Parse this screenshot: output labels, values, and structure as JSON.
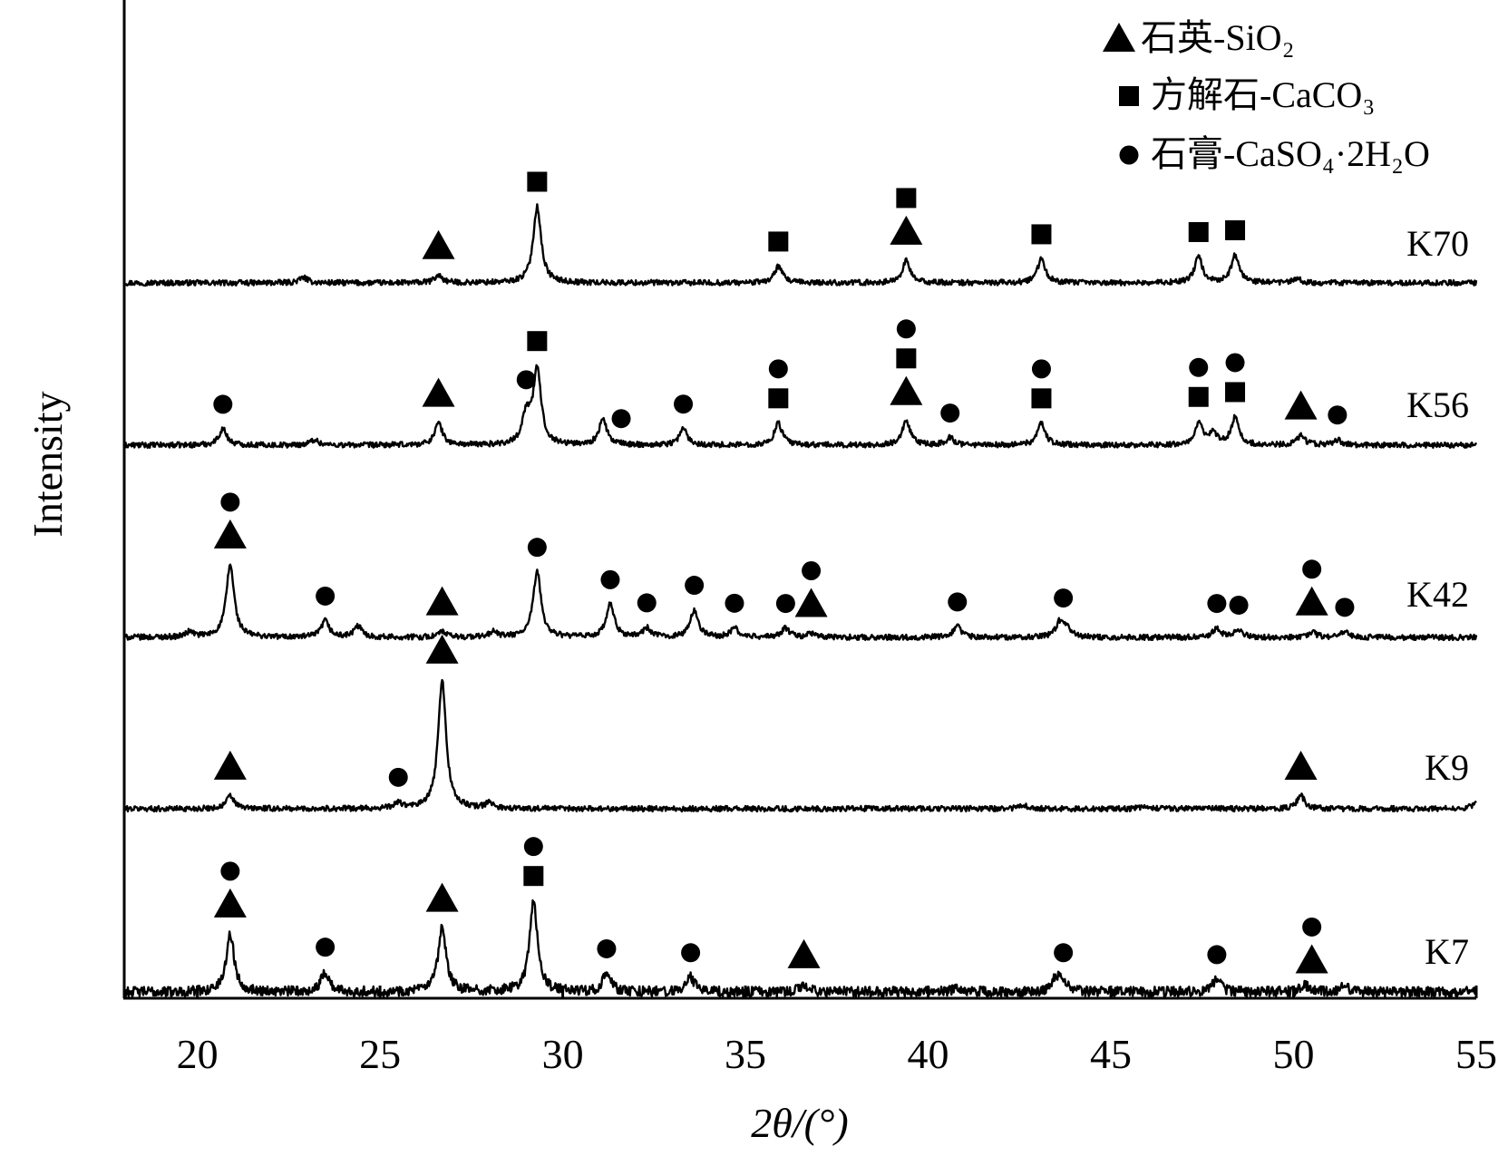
{
  "chart_data": {
    "type": "line",
    "title": "",
    "xlabel": "2θ/(°)",
    "ylabel": "Intensity",
    "xlim": [
      18,
      55
    ],
    "x_ticks": [
      20,
      25,
      30,
      35,
      40,
      45,
      50,
      55
    ],
    "y_ticks": "none",
    "grid": false,
    "legend_position": "top-right",
    "legend": [
      {
        "marker": "triangle",
        "label": "石英-SiO₂"
      },
      {
        "marker": "square",
        "label": "方解石-CaCO₃"
      },
      {
        "marker": "circle",
        "label": "石膏-CaSO₄·2H₂O"
      }
    ],
    "series": [
      {
        "name": "K70",
        "peaks": [
          [
            22.9,
            0.3
          ],
          [
            26.6,
            0.4
          ],
          [
            29.3,
            4.2
          ],
          [
            35.9,
            0.9
          ],
          [
            39.4,
            1.2
          ],
          [
            43.1,
            1.3
          ],
          [
            47.4,
            1.4
          ],
          [
            48.4,
            1.5
          ],
          [
            50.1,
            0.2
          ]
        ],
        "markers": [
          {
            "x": 26.6,
            "symbols": [
              "triangle"
            ]
          },
          {
            "x": 29.3,
            "symbols": [
              "square"
            ]
          },
          {
            "x": 35.9,
            "symbols": [
              "square"
            ]
          },
          {
            "x": 39.4,
            "symbols": [
              "triangle",
              "square"
            ]
          },
          {
            "x": 43.1,
            "symbols": [
              "square"
            ]
          },
          {
            "x": 47.4,
            "symbols": [
              "square"
            ]
          },
          {
            "x": 48.4,
            "symbols": [
              "square"
            ]
          }
        ]
      },
      {
        "name": "K56",
        "peaks": [
          [
            20.7,
            0.9
          ],
          [
            23.2,
            0.3
          ],
          [
            26.6,
            1.2
          ],
          [
            29.0,
            1.6
          ],
          [
            29.3,
            4.1
          ],
          [
            31.1,
            1.4
          ],
          [
            33.3,
            0.9
          ],
          [
            35.9,
            1.2
          ],
          [
            39.4,
            1.3
          ],
          [
            40.6,
            0.4
          ],
          [
            43.1,
            1.2
          ],
          [
            47.4,
            1.2
          ],
          [
            47.8,
            0.6
          ],
          [
            48.4,
            1.5
          ],
          [
            50.2,
            0.5
          ],
          [
            51.2,
            0.3
          ]
        ],
        "markers": [
          {
            "x": 20.7,
            "symbols": [
              "circle"
            ]
          },
          {
            "x": 26.6,
            "symbols": [
              "triangle"
            ]
          },
          {
            "x": 29.0,
            "symbols": [
              "circle"
            ]
          },
          {
            "x": 29.3,
            "symbols": [
              "square"
            ]
          },
          {
            "x": 31.6,
            "symbols": [
              "circle"
            ]
          },
          {
            "x": 33.3,
            "symbols": [
              "circle"
            ]
          },
          {
            "x": 35.9,
            "symbols": [
              "square",
              "circle"
            ]
          },
          {
            "x": 39.4,
            "symbols": [
              "triangle",
              "square",
              "circle"
            ]
          },
          {
            "x": 40.6,
            "symbols": [
              "circle"
            ]
          },
          {
            "x": 43.1,
            "symbols": [
              "square",
              "circle"
            ]
          },
          {
            "x": 47.4,
            "symbols": [
              "square",
              "circle"
            ]
          },
          {
            "x": 48.4,
            "symbols": [
              "square",
              "circle"
            ]
          },
          {
            "x": 50.2,
            "symbols": [
              "triangle"
            ]
          },
          {
            "x": 51.2,
            "symbols": [
              "circle"
            ]
          }
        ]
      },
      {
        "name": "K42",
        "peaks": [
          [
            19.8,
            0.3
          ],
          [
            20.9,
            4.0
          ],
          [
            23.5,
            0.9
          ],
          [
            24.4,
            0.6
          ],
          [
            26.7,
            0.3
          ],
          [
            28.1,
            0.3
          ],
          [
            29.3,
            3.6
          ],
          [
            31.3,
            1.8
          ],
          [
            32.3,
            0.5
          ],
          [
            33.6,
            1.5
          ],
          [
            34.7,
            0.5
          ],
          [
            36.1,
            0.5
          ],
          [
            36.8,
            0.2
          ],
          [
            40.8,
            0.6
          ],
          [
            43.6,
            0.8
          ],
          [
            43.8,
            0.5
          ],
          [
            47.9,
            0.5
          ],
          [
            48.5,
            0.4
          ],
          [
            50.5,
            0.3
          ],
          [
            51.4,
            0.3
          ]
        ],
        "markers": [
          {
            "x": 20.9,
            "symbols": [
              "triangle",
              "circle"
            ]
          },
          {
            "x": 23.5,
            "symbols": [
              "circle"
            ]
          },
          {
            "x": 26.7,
            "symbols": [
              "triangle"
            ]
          },
          {
            "x": 29.3,
            "symbols": [
              "circle"
            ]
          },
          {
            "x": 31.3,
            "symbols": [
              "circle"
            ]
          },
          {
            "x": 32.3,
            "symbols": [
              "circle"
            ]
          },
          {
            "x": 33.6,
            "symbols": [
              "circle"
            ]
          },
          {
            "x": 34.7,
            "symbols": [
              "circle"
            ]
          },
          {
            "x": 36.1,
            "symbols": [
              "circle"
            ]
          },
          {
            "x": 36.8,
            "symbols": [
              "triangle",
              "circle"
            ]
          },
          {
            "x": 40.8,
            "symbols": [
              "circle"
            ]
          },
          {
            "x": 43.7,
            "symbols": [
              "circle"
            ]
          },
          {
            "x": 47.9,
            "symbols": [
              "circle"
            ]
          },
          {
            "x": 48.5,
            "symbols": [
              "circle"
            ]
          },
          {
            "x": 50.5,
            "symbols": [
              "triangle",
              "circle"
            ]
          },
          {
            "x": 51.4,
            "symbols": [
              "circle"
            ]
          }
        ]
      },
      {
        "name": "K9",
        "peaks": [
          [
            20.9,
            0.7
          ],
          [
            25.5,
            0.3
          ],
          [
            26.7,
            7.1
          ],
          [
            28.0,
            0.3
          ],
          [
            42.6,
            0.2
          ],
          [
            45.9,
            0.1
          ],
          [
            50.2,
            0.7
          ],
          [
            55.0,
            0.3
          ]
        ],
        "markers": [
          {
            "x": 20.9,
            "symbols": [
              "triangle"
            ]
          },
          {
            "x": 25.5,
            "symbols": [
              "circle"
            ]
          },
          {
            "x": 26.7,
            "symbols": [
              "triangle"
            ]
          },
          {
            "x": 50.2,
            "symbols": [
              "triangle"
            ]
          }
        ]
      },
      {
        "name": "K7",
        "peaks": [
          [
            20.9,
            3.2
          ],
          [
            23.5,
            1.1
          ],
          [
            26.7,
            3.5
          ],
          [
            29.2,
            5.0
          ],
          [
            31.2,
            1.0
          ],
          [
            33.5,
            0.8
          ],
          [
            36.6,
            0.4
          ],
          [
            40.8,
            0.3
          ],
          [
            43.5,
            0.7
          ],
          [
            43.7,
            0.6
          ],
          [
            47.9,
            0.7
          ],
          [
            50.3,
            0.4
          ],
          [
            51.4,
            0.3
          ]
        ],
        "markers": [
          {
            "x": 20.9,
            "symbols": [
              "triangle",
              "circle"
            ]
          },
          {
            "x": 23.5,
            "symbols": [
              "circle"
            ]
          },
          {
            "x": 26.7,
            "symbols": [
              "triangle"
            ]
          },
          {
            "x": 29.2,
            "symbols": [
              "square",
              "circle"
            ]
          },
          {
            "x": 31.2,
            "symbols": [
              "circle"
            ]
          },
          {
            "x": 33.5,
            "symbols": [
              "circle"
            ]
          },
          {
            "x": 36.6,
            "symbols": [
              "triangle"
            ]
          },
          {
            "x": 43.7,
            "symbols": [
              "circle"
            ]
          },
          {
            "x": 47.9,
            "symbols": [
              "circle"
            ]
          },
          {
            "x": 50.5,
            "symbols": [
              "triangle",
              "circle"
            ]
          }
        ]
      }
    ]
  }
}
